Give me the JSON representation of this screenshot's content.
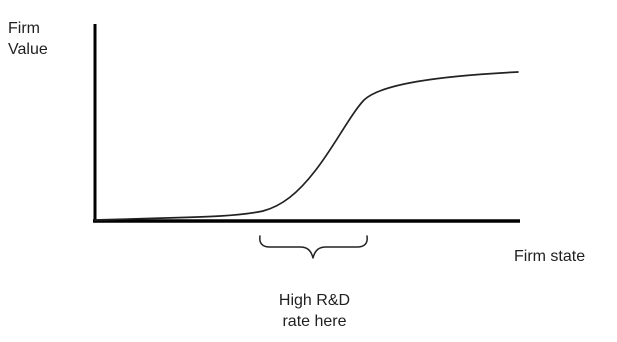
{
  "diagram": {
    "y_axis_label": "Firm\nValue",
    "x_axis_label": "Firm state",
    "annotation": "High R&D\nrate here"
  }
}
